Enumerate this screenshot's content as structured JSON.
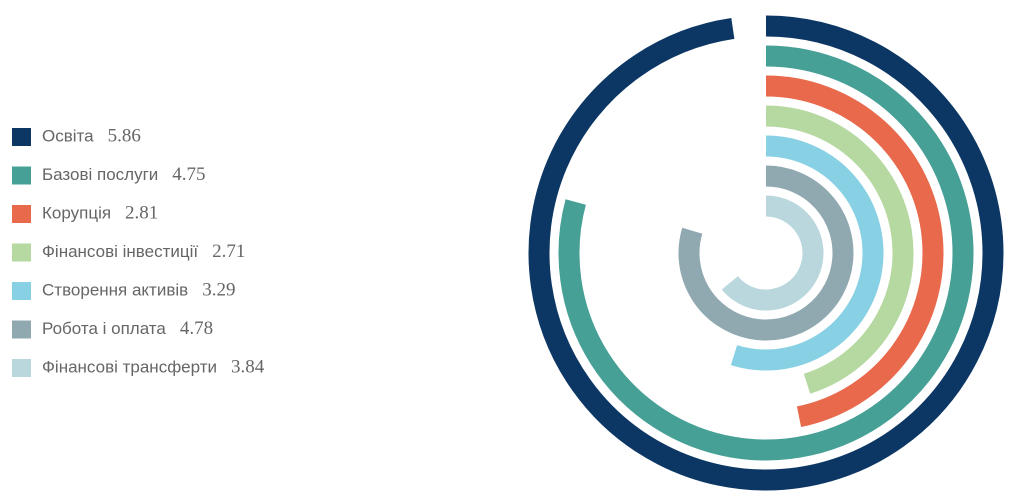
{
  "chart_data": {
    "type": "radial-bar",
    "categories": [
      "Освіта",
      "Базові послуги",
      "Корупція",
      "Фінансові інвестиції",
      "Створення активів",
      "Робота і оплата",
      "Фінансові трансферти"
    ],
    "values": [
      5.86,
      4.75,
      2.81,
      2.71,
      3.29,
      4.78,
      3.84
    ],
    "colors": [
      "#0c3764",
      "#46a096",
      "#e8694b",
      "#b6d8a1",
      "#88d0e4",
      "#90a9b1",
      "#b9d7dd"
    ],
    "xlim": [
      0,
      6
    ]
  }
}
